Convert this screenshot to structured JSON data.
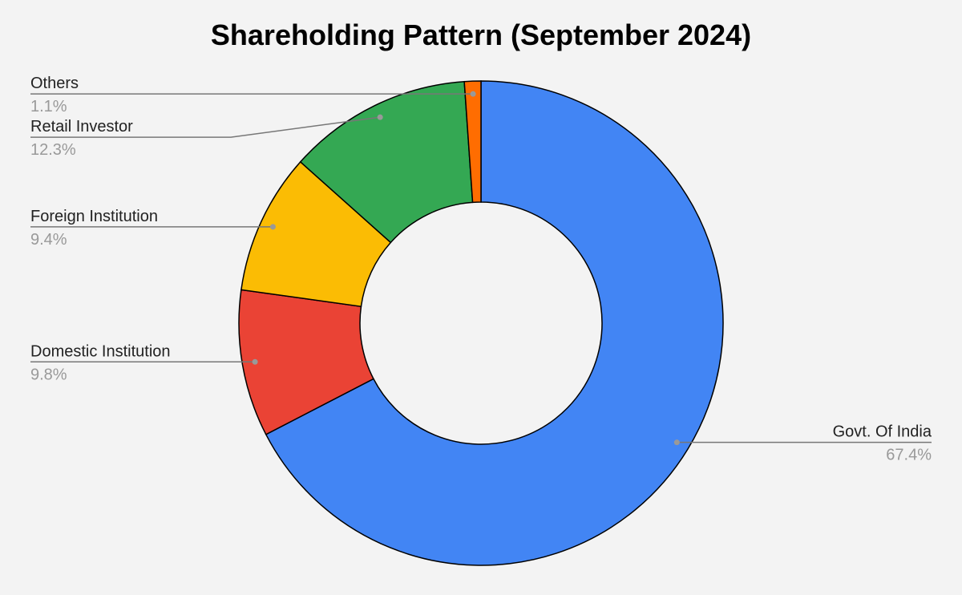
{
  "chart_data": {
    "type": "donut",
    "title": "Shareholding Pattern (September 2024)",
    "categories": [
      "Govt. Of India",
      "Domestic Institution",
      "Foreign Institution",
      "Retail Investor",
      "Others"
    ],
    "values": [
      67.4,
      9.8,
      9.4,
      12.3,
      1.1
    ],
    "value_labels": [
      "67.4%",
      "9.8%",
      "9.4%",
      "12.3%",
      "1.1%"
    ],
    "colors": [
      "#4285f4",
      "#ea4335",
      "#fbbc04",
      "#34a853",
      "#ff6d01"
    ]
  }
}
